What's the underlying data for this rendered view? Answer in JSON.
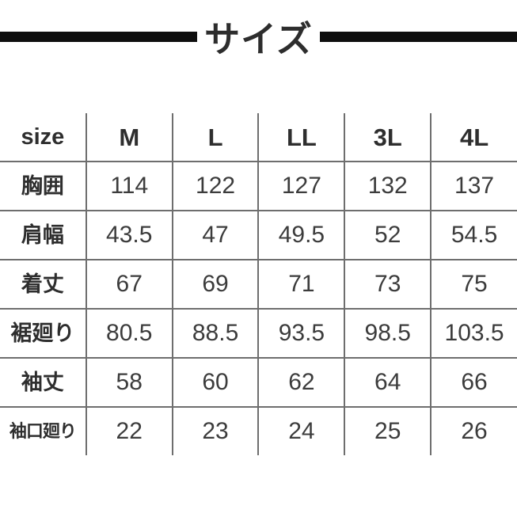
{
  "title": {
    "text": "サイズ"
  },
  "colors": {
    "title_bar": "#0e0e0e",
    "title_text": "#2d2d2d",
    "grid_line": "#6e6e6e",
    "label_text": "#2e2e2e",
    "value_text": "#3c3c3c",
    "background": "#ffffff"
  },
  "chart_data": {
    "type": "table",
    "title": "サイズ",
    "columns": [
      "size",
      "M",
      "L",
      "LL",
      "3L",
      "4L"
    ],
    "rows": [
      {
        "label": "胸囲",
        "values": [
          "114",
          "122",
          "127",
          "132",
          "137"
        ]
      },
      {
        "label": "肩幅",
        "values": [
          "43.5",
          "47",
          "49.5",
          "52",
          "54.5"
        ]
      },
      {
        "label": "着丈",
        "values": [
          "67",
          "69",
          "71",
          "73",
          "75"
        ]
      },
      {
        "label": "裾廻り",
        "values": [
          "80.5",
          "88.5",
          "93.5",
          "98.5",
          "103.5"
        ]
      },
      {
        "label": "袖丈",
        "values": [
          "58",
          "60",
          "62",
          "64",
          "66"
        ]
      },
      {
        "label": "袖口廻り",
        "values": [
          "22",
          "23",
          "24",
          "25",
          "26"
        ]
      }
    ],
    "layout": {
      "grid": "inner-borders-only",
      "outer_border": false
    }
  }
}
